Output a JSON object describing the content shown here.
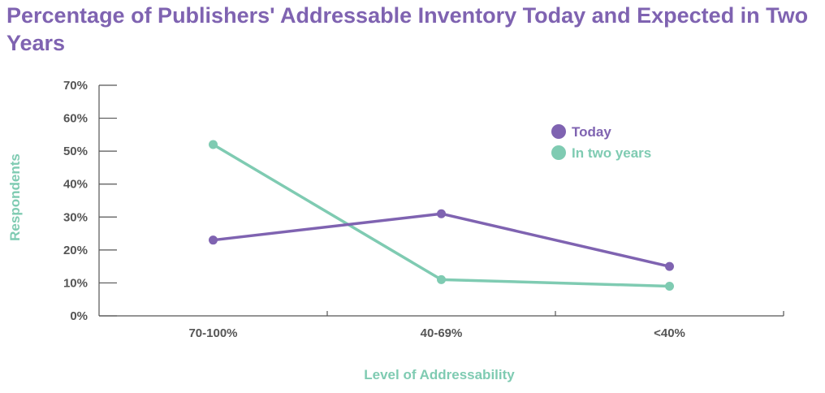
{
  "chart_data": {
    "type": "line",
    "title": "Percentage of Publishers' Addressable Inventory Today and Expected in Two Years",
    "xlabel": "Level of Addressability",
    "ylabel": "Respondents",
    "categories": [
      "70-100%",
      "40-69%",
      "<40%"
    ],
    "y_ticks": [
      "0%",
      "10%",
      "20%",
      "30%",
      "40%",
      "50%",
      "60%",
      "70%"
    ],
    "ylim": [
      0,
      70
    ],
    "y_unit": "%",
    "grid": false,
    "legend_position": "top-right",
    "series": [
      {
        "name": "Today",
        "color": "#7f63b1",
        "values": [
          23,
          31,
          15
        ]
      },
      {
        "name": "In two years",
        "color": "#7fcbb2",
        "values": [
          52,
          11,
          9
        ]
      }
    ],
    "colors": {
      "title": "#7f63b1",
      "axis_label": "#7fcbb2",
      "ticks": "#555555",
      "axis": "#555555"
    }
  }
}
